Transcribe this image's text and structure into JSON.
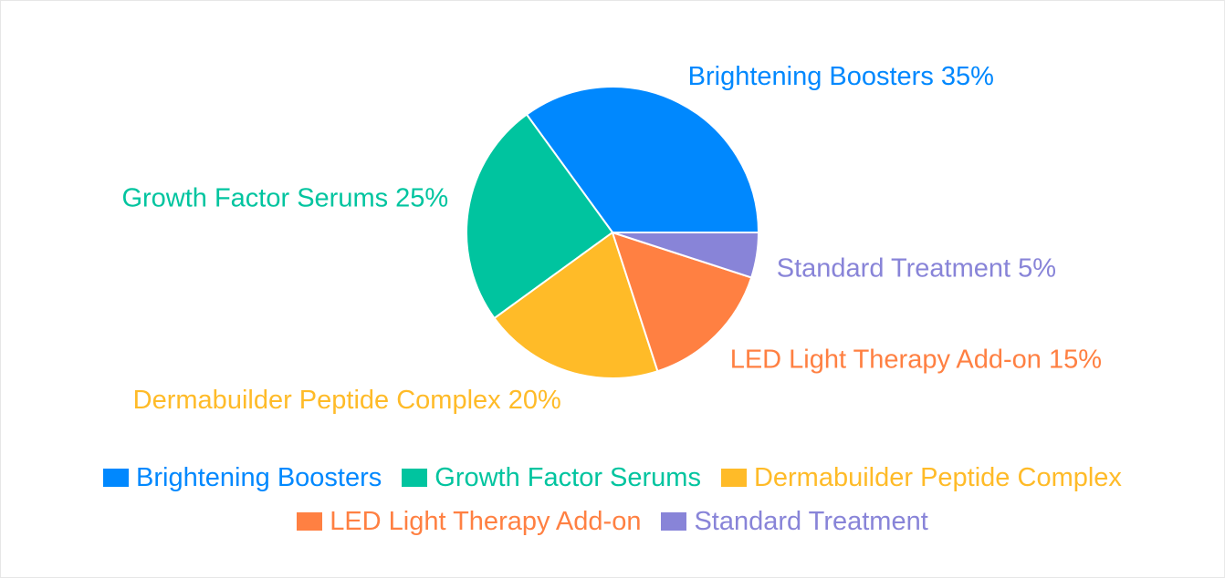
{
  "chart_data": {
    "type": "pie",
    "title": "",
    "slices": [
      {
        "name": "Brightening Boosters",
        "value": 35,
        "label": "Brightening Boosters 35%",
        "color": "#0088fe"
      },
      {
        "name": "Growth Factor Serums",
        "value": 25,
        "label": "Growth Factor Serums 25%",
        "color": "#00c49f"
      },
      {
        "name": "Dermabuilder Peptide Complex",
        "value": 20,
        "label": "Dermabuilder Peptide Complex 20%",
        "color": "#ffbb28"
      },
      {
        "name": "LED Light Therapy Add-on",
        "value": 15,
        "label": "LED Light Therapy Add-on 15%",
        "color": "#ff8042"
      },
      {
        "name": "Standard Treatment",
        "value": 5,
        "label": "Standard Treatment 5%",
        "color": "#8884d8"
      }
    ],
    "legend_position": "bottom"
  }
}
